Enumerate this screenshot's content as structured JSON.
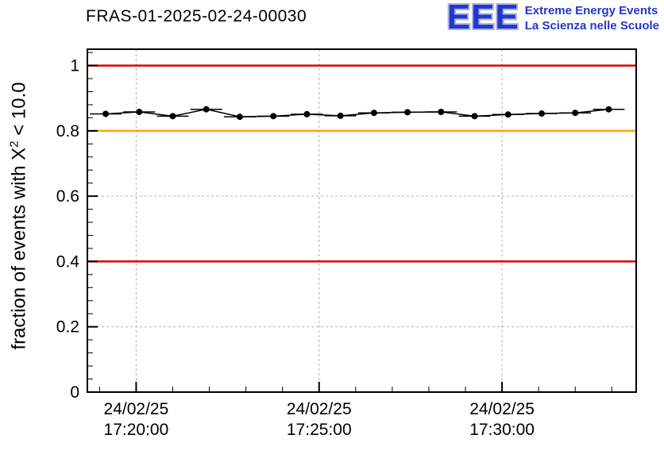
{
  "header": {
    "title": "FRAS-01-2025-02-24-00030",
    "logo": {
      "acronym": "EEE",
      "line1": "Extreme Energy Events",
      "line2": "La Scienza nelle Scuole"
    }
  },
  "axes": {
    "y_title_prefix": "fraction of events with X",
    "y_title_sup": "2",
    "y_title_suffix": " < 10.0"
  },
  "chart_data": {
    "type": "line",
    "title": "FRAS-01-2025-02-24-00030",
    "ylabel": "fraction of events with X^2 < 10.0",
    "xlabel": "",
    "x_unit": "seconds relative to 17:20:00 on 24/02/25",
    "xlim": [
      -80,
      820
    ],
    "ylim": [
      0,
      1.05
    ],
    "grid": true,
    "grid_color": "#b0b0b0",
    "legend": "none",
    "y_ticks": {
      "values": [
        0,
        0.2,
        0.4,
        0.6,
        0.8,
        1
      ],
      "labels": [
        "0",
        "0.2",
        "0.4",
        "0.6",
        "0.8",
        "1"
      ],
      "minor_step": 0.04
    },
    "x_major_ticks": [
      {
        "t": 0,
        "date": "24/02/25",
        "time": "17:20:00"
      },
      {
        "t": 300,
        "date": "24/02/25",
        "time": "17:25:00"
      },
      {
        "t": 600,
        "date": "24/02/25",
        "time": "17:30:00"
      }
    ],
    "x_minor_step": 60,
    "reference_lines": [
      {
        "value": 1.0,
        "color": "#dd0000"
      },
      {
        "value": 0.8,
        "color": "#ffa500"
      },
      {
        "value": 0.4,
        "color": "#dd0000"
      }
    ],
    "series": [
      {
        "name": "fraction of events with chi2 < 10.0",
        "color": "#000000",
        "x_err": 26,
        "x": [
          -50,
          5,
          60,
          115,
          170,
          225,
          280,
          335,
          390,
          445,
          500,
          555,
          610,
          665,
          720,
          775
        ],
        "y": [
          0.852,
          0.858,
          0.845,
          0.866,
          0.843,
          0.845,
          0.851,
          0.846,
          0.855,
          0.857,
          0.858,
          0.845,
          0.85,
          0.853,
          0.855,
          0.866
        ]
      }
    ]
  }
}
